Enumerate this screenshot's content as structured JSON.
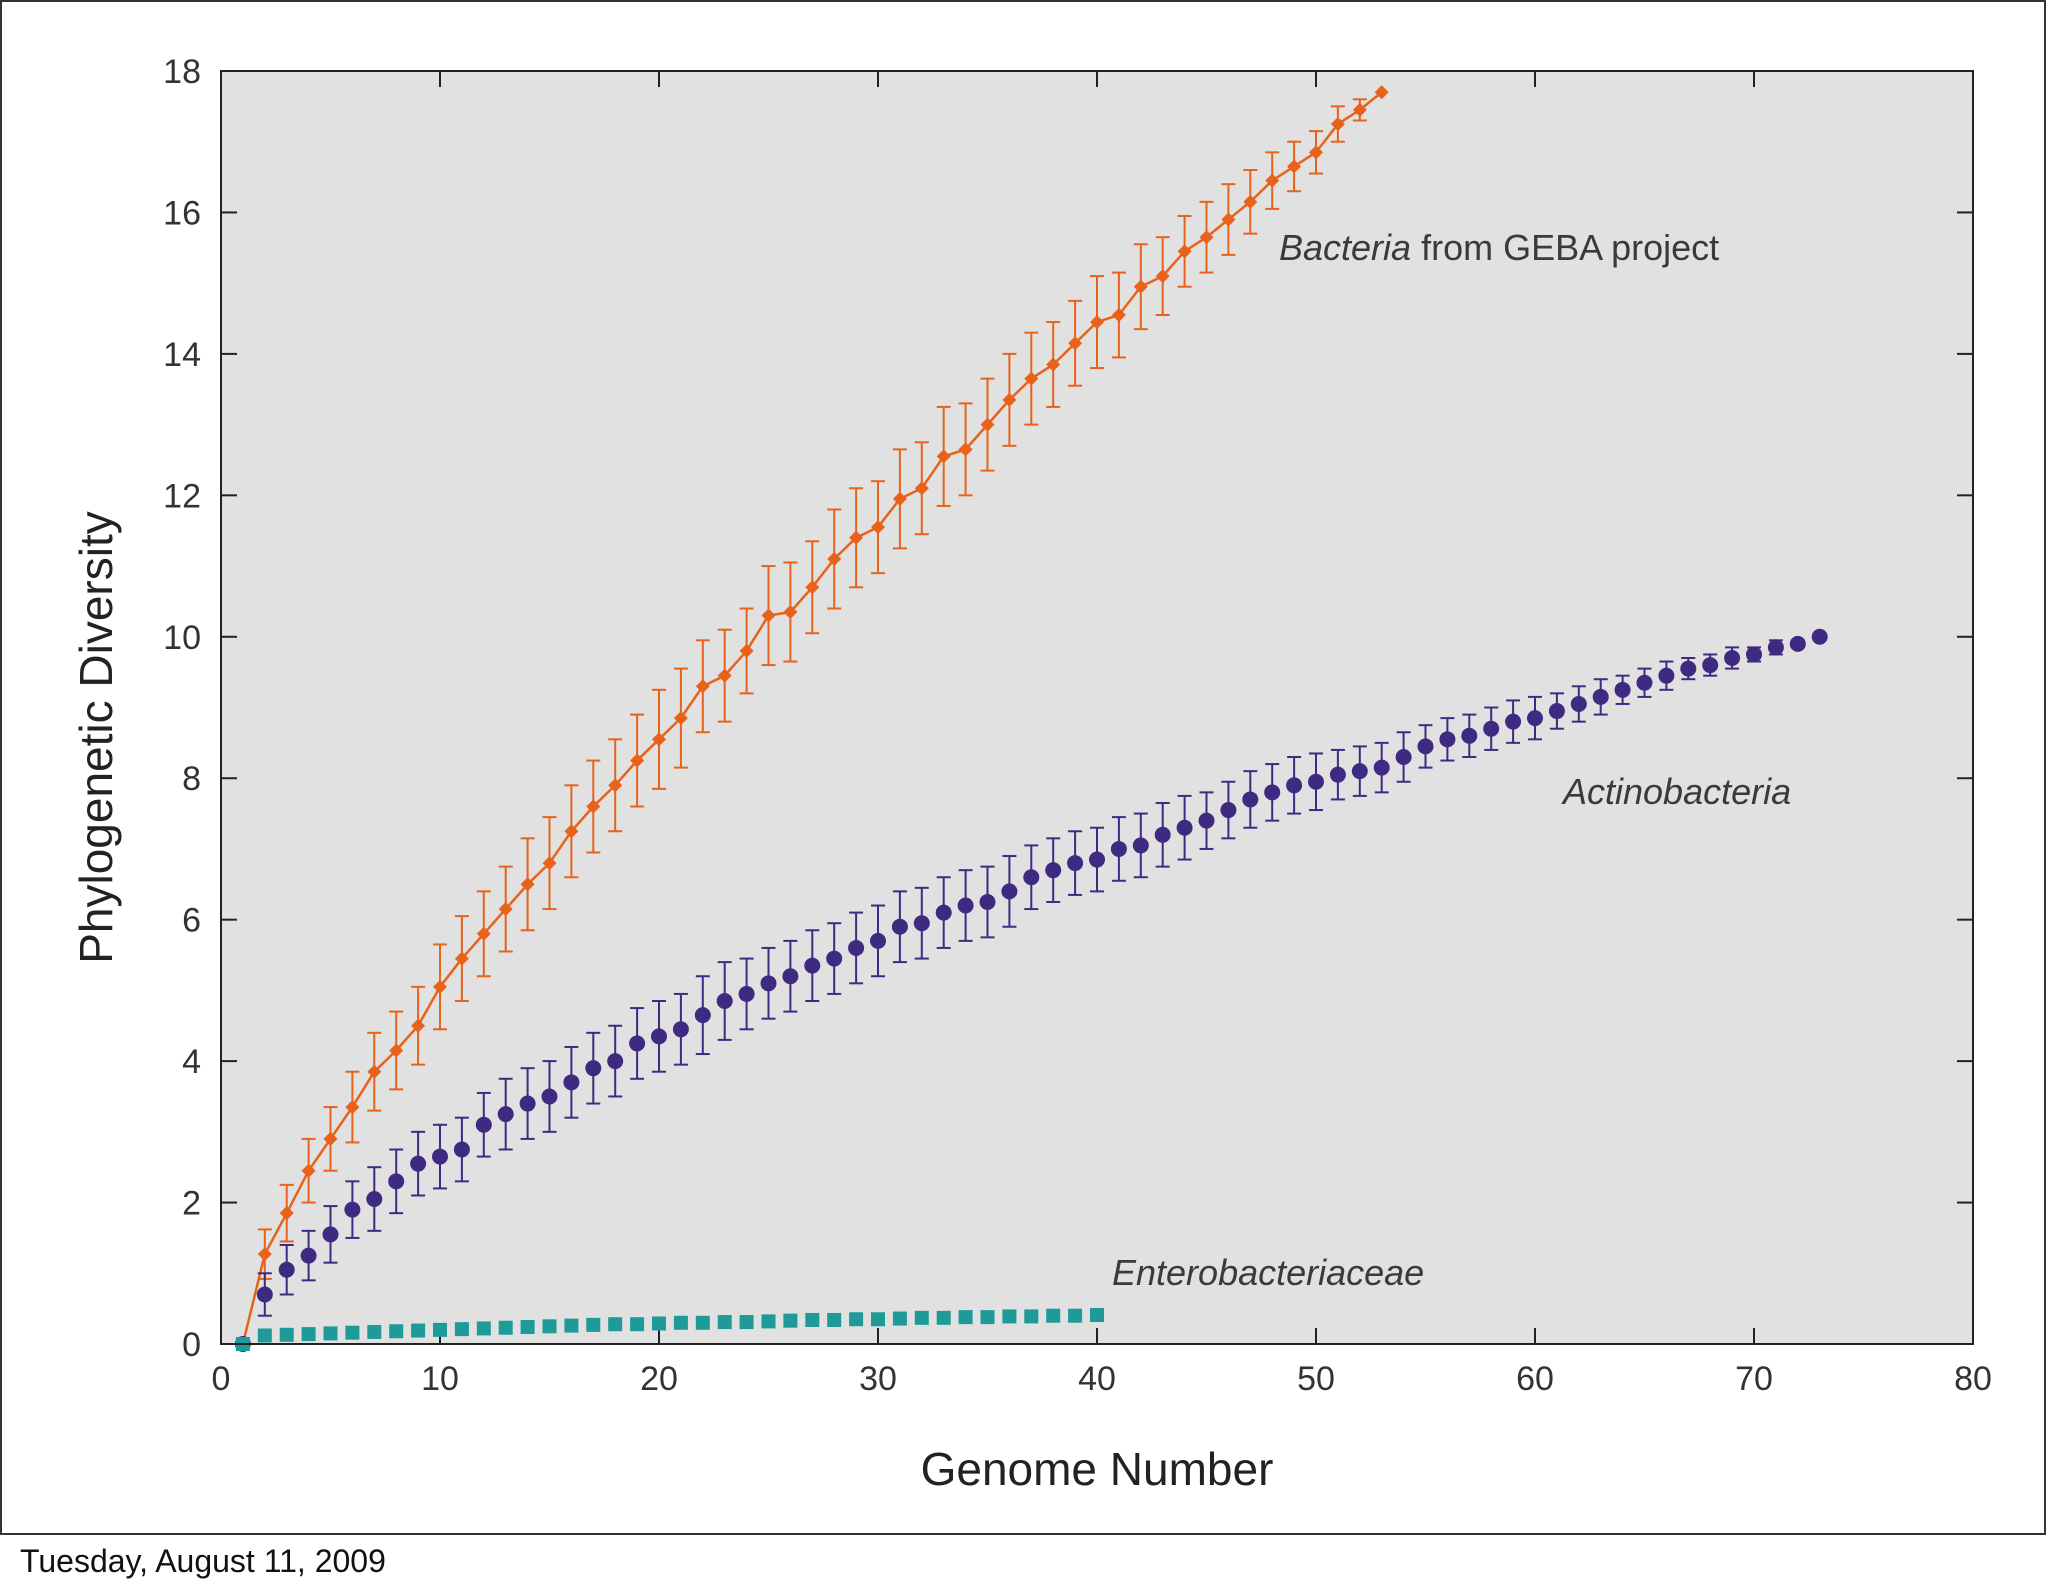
{
  "footer": {
    "date": "Tuesday, August 11, 2009"
  },
  "chart_data": {
    "type": "line",
    "title": "",
    "xlabel": "Genome Number",
    "ylabel": "Phylogenetic Diversity",
    "xlim": [
      0,
      80
    ],
    "ylim": [
      0,
      18
    ],
    "xticks": [
      0,
      10,
      20,
      30,
      40,
      50,
      60,
      70,
      80
    ],
    "yticks": [
      0,
      2,
      4,
      6,
      8,
      10,
      12,
      14,
      16,
      18
    ],
    "background": "#e1e1e1",
    "series": [
      {
        "name": "Bacteria from GEBA project",
        "label_italic": "Bacteria",
        "label_rest": " from GEBA project",
        "color": "#e8621a",
        "marker": "diamond",
        "line": true,
        "x": [
          1,
          2,
          3,
          4,
          5,
          6,
          7,
          8,
          9,
          10,
          11,
          12,
          13,
          14,
          15,
          16,
          17,
          18,
          19,
          20,
          21,
          22,
          23,
          24,
          25,
          26,
          27,
          28,
          29,
          30,
          31,
          32,
          33,
          34,
          35,
          36,
          37,
          38,
          39,
          40,
          41,
          42,
          43,
          44,
          45,
          46,
          47,
          48,
          49,
          50,
          51,
          52,
          53
        ],
        "y": [
          0,
          1.27,
          1.85,
          2.45,
          2.9,
          3.35,
          3.85,
          4.15,
          4.5,
          5.05,
          5.45,
          5.8,
          6.15,
          6.5,
          6.8,
          7.25,
          7.6,
          7.9,
          8.25,
          8.55,
          8.85,
          9.3,
          9.45,
          9.8,
          10.3,
          10.35,
          10.7,
          11.1,
          11.4,
          11.55,
          11.95,
          12.1,
          12.55,
          12.65,
          13.0,
          13.35,
          13.65,
          13.85,
          14.15,
          14.45,
          14.55,
          14.95,
          15.1,
          15.45,
          15.65,
          15.9,
          16.15,
          16.45,
          16.65,
          16.85,
          17.25,
          17.45,
          17.7
        ],
        "err": [
          0,
          0.35,
          0.4,
          0.45,
          0.45,
          0.5,
          0.55,
          0.55,
          0.55,
          0.6,
          0.6,
          0.6,
          0.6,
          0.65,
          0.65,
          0.65,
          0.65,
          0.65,
          0.65,
          0.7,
          0.7,
          0.65,
          0.65,
          0.6,
          0.7,
          0.7,
          0.65,
          0.7,
          0.7,
          0.65,
          0.7,
          0.65,
          0.7,
          0.65,
          0.65,
          0.65,
          0.65,
          0.6,
          0.6,
          0.65,
          0.6,
          0.6,
          0.55,
          0.5,
          0.5,
          0.5,
          0.45,
          0.4,
          0.35,
          0.3,
          0.25,
          0.15,
          0
        ]
      },
      {
        "name": "Actinobacteria",
        "label_italic": "Actinobacteria",
        "label_rest": "",
        "color": "#3f2a82",
        "marker": "circle",
        "line": false,
        "x": [
          1,
          2,
          3,
          4,
          5,
          6,
          7,
          8,
          9,
          10,
          11,
          12,
          13,
          14,
          15,
          16,
          17,
          18,
          19,
          20,
          21,
          22,
          23,
          24,
          25,
          26,
          27,
          28,
          29,
          30,
          31,
          32,
          33,
          34,
          35,
          36,
          37,
          38,
          39,
          40,
          41,
          42,
          43,
          44,
          45,
          46,
          47,
          48,
          49,
          50,
          51,
          52,
          53,
          54,
          55,
          56,
          57,
          58,
          59,
          60,
          61,
          62,
          63,
          64,
          65,
          66,
          67,
          68,
          69,
          70,
          71,
          72,
          73
        ],
        "y": [
          0,
          0.7,
          1.05,
          1.25,
          1.55,
          1.9,
          2.05,
          2.3,
          2.55,
          2.65,
          2.75,
          3.1,
          3.25,
          3.4,
          3.5,
          3.7,
          3.9,
          4.0,
          4.25,
          4.35,
          4.45,
          4.65,
          4.85,
          4.95,
          5.1,
          5.2,
          5.35,
          5.45,
          5.6,
          5.7,
          5.9,
          5.95,
          6.1,
          6.2,
          6.25,
          6.4,
          6.6,
          6.7,
          6.8,
          6.85,
          7.0,
          7.05,
          7.2,
          7.3,
          7.4,
          7.55,
          7.7,
          7.8,
          7.9,
          7.95,
          8.05,
          8.1,
          8.15,
          8.3,
          8.45,
          8.55,
          8.6,
          8.7,
          8.8,
          8.85,
          8.95,
          9.05,
          9.15,
          9.25,
          9.35,
          9.45,
          9.55,
          9.6,
          9.7,
          9.75,
          9.85,
          9.9,
          10.0
        ],
        "err": [
          0,
          0.3,
          0.35,
          0.35,
          0.4,
          0.4,
          0.45,
          0.45,
          0.45,
          0.45,
          0.45,
          0.45,
          0.5,
          0.5,
          0.5,
          0.5,
          0.5,
          0.5,
          0.5,
          0.5,
          0.5,
          0.55,
          0.55,
          0.5,
          0.5,
          0.5,
          0.5,
          0.5,
          0.5,
          0.5,
          0.5,
          0.5,
          0.5,
          0.5,
          0.5,
          0.5,
          0.45,
          0.45,
          0.45,
          0.45,
          0.45,
          0.45,
          0.45,
          0.45,
          0.4,
          0.4,
          0.4,
          0.4,
          0.4,
          0.4,
          0.35,
          0.35,
          0.35,
          0.35,
          0.3,
          0.3,
          0.3,
          0.3,
          0.3,
          0.3,
          0.25,
          0.25,
          0.25,
          0.2,
          0.2,
          0.2,
          0.15,
          0.15,
          0.15,
          0.1,
          0.1,
          0.05,
          0
        ]
      },
      {
        "name": "Enterobacteriaceae",
        "label_italic": "Enterobacteriaceae",
        "label_rest": "",
        "color": "#1e9a98",
        "marker": "square",
        "line": false,
        "x": [
          1,
          2,
          3,
          4,
          5,
          6,
          7,
          8,
          9,
          10,
          11,
          12,
          13,
          14,
          15,
          16,
          17,
          18,
          19,
          20,
          21,
          22,
          23,
          24,
          25,
          26,
          27,
          28,
          29,
          30,
          31,
          32,
          33,
          34,
          35,
          36,
          37,
          38,
          39,
          40
        ],
        "y": [
          0,
          0.12,
          0.13,
          0.14,
          0.15,
          0.16,
          0.17,
          0.18,
          0.19,
          0.2,
          0.21,
          0.22,
          0.23,
          0.24,
          0.25,
          0.26,
          0.27,
          0.28,
          0.28,
          0.29,
          0.3,
          0.3,
          0.31,
          0.31,
          0.32,
          0.33,
          0.34,
          0.34,
          0.35,
          0.35,
          0.36,
          0.37,
          0.37,
          0.38,
          0.38,
          0.39,
          0.39,
          0.4,
          0.4,
          0.41
        ],
        "err": []
      }
    ]
  }
}
